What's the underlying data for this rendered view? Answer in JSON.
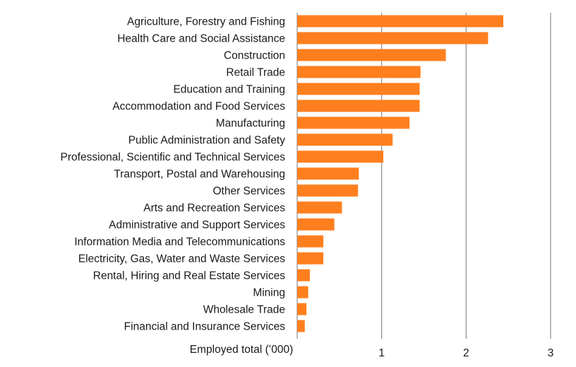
{
  "chart_data": {
    "type": "bar",
    "orientation": "horizontal",
    "title": "",
    "xlabel": "Employed total (’000)",
    "ylabel": "",
    "categories": [
      "Agriculture, Forestry and Fishing",
      "Health Care and Social Assistance",
      "Construction",
      "Retail Trade",
      "Education and Training",
      "Accommodation and Food Services",
      "Manufacturing",
      "Public Administration and Safety",
      "Professional, Scientific and Technical Services",
      "Transport, Postal and Warehousing",
      "Other Services",
      "Arts and Recreation Services",
      "Administrative and Support Services",
      "Information Media and Telecommunications",
      "Electricity, Gas, Water and Waste Services",
      "Rental, Hiring and Real Estate Services",
      "Mining",
      "Wholesale Trade",
      "Financial and Insurance Services"
    ],
    "values": [
      2.44,
      2.26,
      1.76,
      1.46,
      1.45,
      1.45,
      1.33,
      1.13,
      1.02,
      0.73,
      0.72,
      0.53,
      0.44,
      0.31,
      0.31,
      0.15,
      0.13,
      0.11,
      0.09
    ],
    "xlim": [
      0,
      3
    ],
    "xticks": [
      1,
      2,
      3
    ],
    "xtick_labels": [
      "1",
      "2",
      "3"
    ],
    "grid": true,
    "legend": "none",
    "bar_color": "#FF7F1E",
    "gridline_color": "#8c8c8c"
  }
}
